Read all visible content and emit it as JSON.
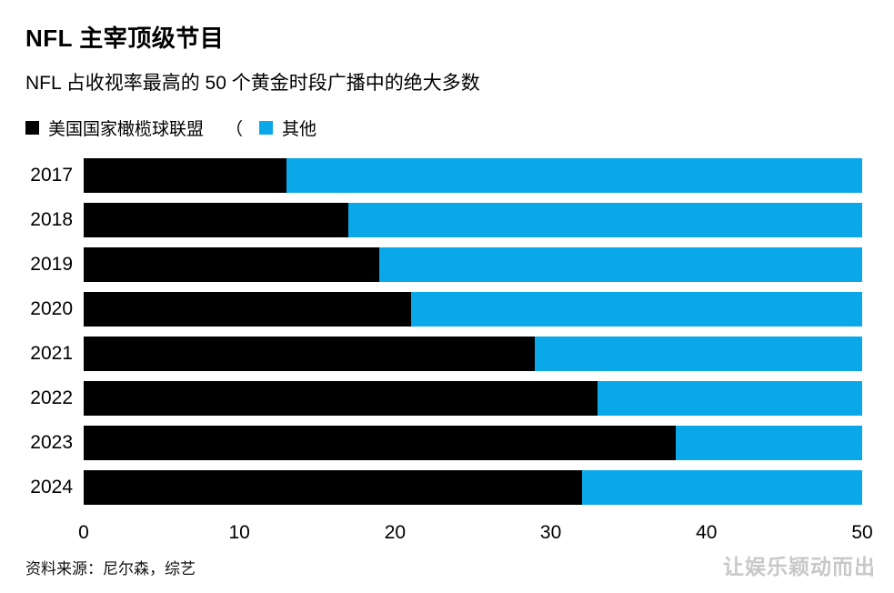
{
  "header": {
    "title": "NFL 主宰顶级节目",
    "subtitle": "NFL 占收视率最高的 50 个黄金时段广播中的绝大多数"
  },
  "legend": {
    "nfl_label": "美国国家橄榄球联盟",
    "separator": "（",
    "other_label": "其他",
    "nfl_color": "#000000",
    "other_color": "#0aa7e9"
  },
  "chart_data": {
    "type": "bar",
    "orientation": "horizontal",
    "stacked": true,
    "title": "NFL 主宰顶级节目",
    "subtitle": "NFL 占收视率最高的 50 个黄金时段广播中的绝大多数",
    "categories": [
      "2017",
      "2018",
      "2019",
      "2020",
      "2021",
      "2022",
      "2023",
      "2024"
    ],
    "series": [
      {
        "name": "美国国家橄榄球联盟",
        "color": "#000000",
        "values": [
          13,
          17,
          19,
          21,
          29,
          33,
          38,
          32
        ]
      },
      {
        "name": "其他",
        "color": "#0aa7e9",
        "values": [
          37,
          33,
          31,
          29,
          21,
          17,
          12,
          18
        ]
      }
    ],
    "xlim": [
      0,
      50
    ],
    "x_ticks": [
      0,
      10,
      20,
      30,
      40,
      50
    ],
    "xlabel": "",
    "ylabel": "",
    "grid": false,
    "legend_position": "top"
  },
  "footer": {
    "source": "资料来源：尼尔森，综艺",
    "watermark": "让娱乐颖动而出"
  }
}
